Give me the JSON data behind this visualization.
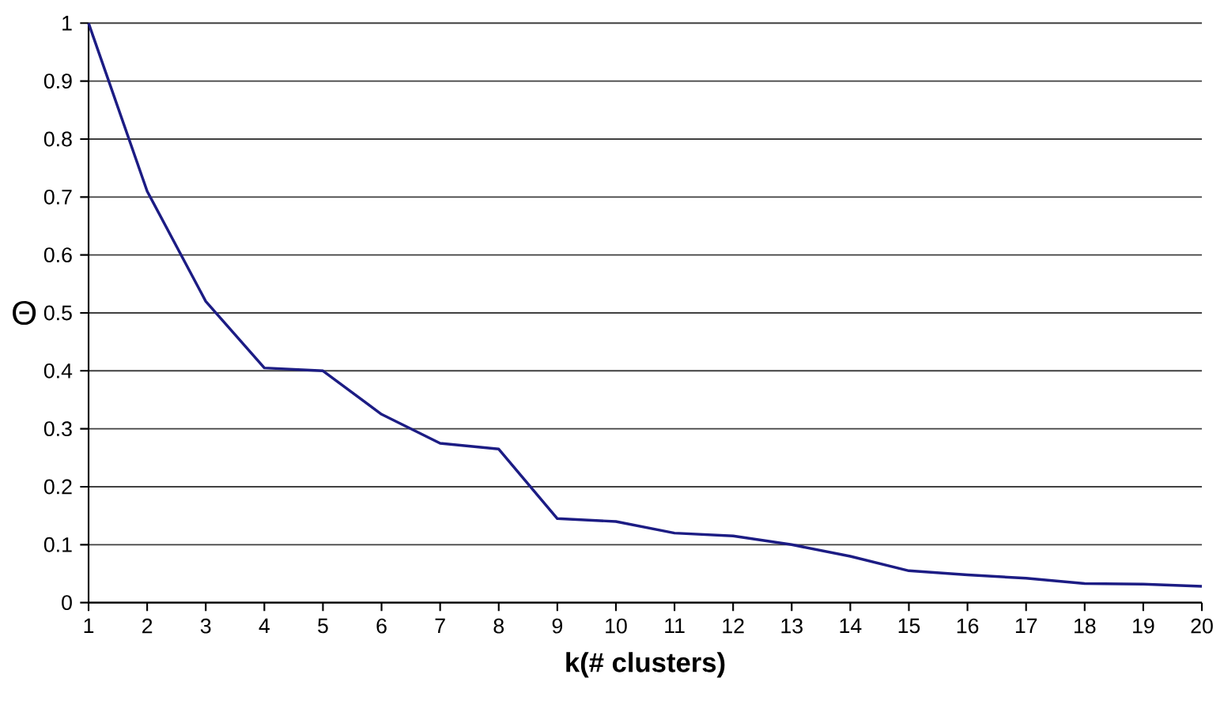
{
  "chart_data": {
    "type": "line",
    "xlabel": "k(# clusters)",
    "ylabel": "Θ",
    "x": [
      1,
      2,
      3,
      4,
      5,
      6,
      7,
      8,
      9,
      10,
      11,
      12,
      13,
      14,
      15,
      16,
      17,
      18,
      19,
      20
    ],
    "series": [
      {
        "color": "#1c1c84",
        "values": [
          1.0,
          0.71,
          0.52,
          0.405,
          0.4,
          0.325,
          0.275,
          0.265,
          0.145,
          0.14,
          0.12,
          0.115,
          0.1,
          0.08,
          0.055,
          0.048,
          0.042,
          0.033,
          0.032,
          0.028
        ]
      }
    ],
    "xlim": [
      1,
      20
    ],
    "xticks": [
      1,
      2,
      3,
      4,
      5,
      6,
      7,
      8,
      9,
      10,
      11,
      12,
      13,
      14,
      15,
      16,
      17,
      18,
      19,
      20
    ],
    "ylim": [
      0,
      1
    ],
    "yticks": [
      0,
      0.1,
      0.2,
      0.3,
      0.4,
      0.5,
      0.6,
      0.7,
      0.8,
      0.9,
      1
    ],
    "grid": "y",
    "marker": "none",
    "line_style": "solid"
  }
}
